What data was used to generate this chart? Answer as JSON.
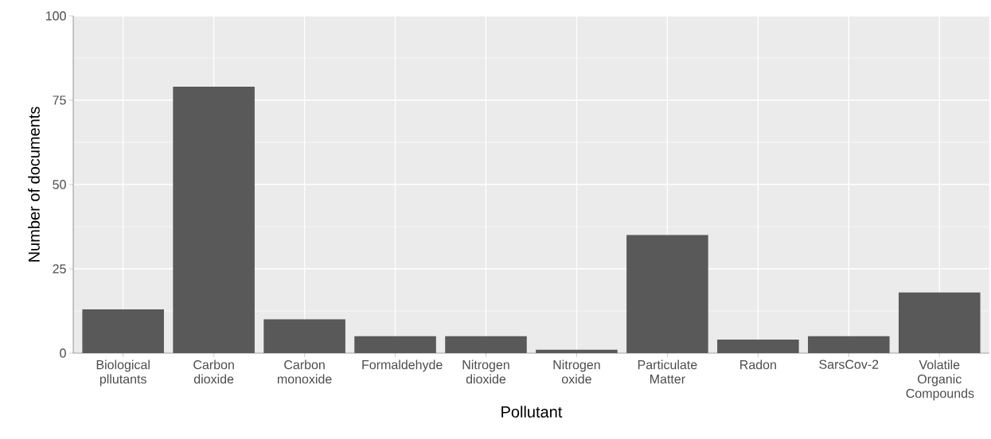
{
  "chart_data": {
    "type": "bar",
    "xlabel": "Pollutant",
    "ylabel": "Number of documents",
    "categories": [
      "Biological pllutants",
      "Carbon dioxide",
      "Carbon monoxide",
      "Formaldehyde",
      "Nitrogen dioxide",
      "Nitrogen oxide",
      "Particulate Matter",
      "Radon",
      "SarsCov-2",
      "Volatile Organic Compounds"
    ],
    "values": [
      13,
      79,
      10,
      5,
      5,
      1,
      35,
      4,
      5,
      18
    ],
    "color": "#595959",
    "ylim": [
      0,
      100
    ],
    "yticks": [
      0,
      25,
      50,
      75,
      100
    ],
    "grid": true
  }
}
